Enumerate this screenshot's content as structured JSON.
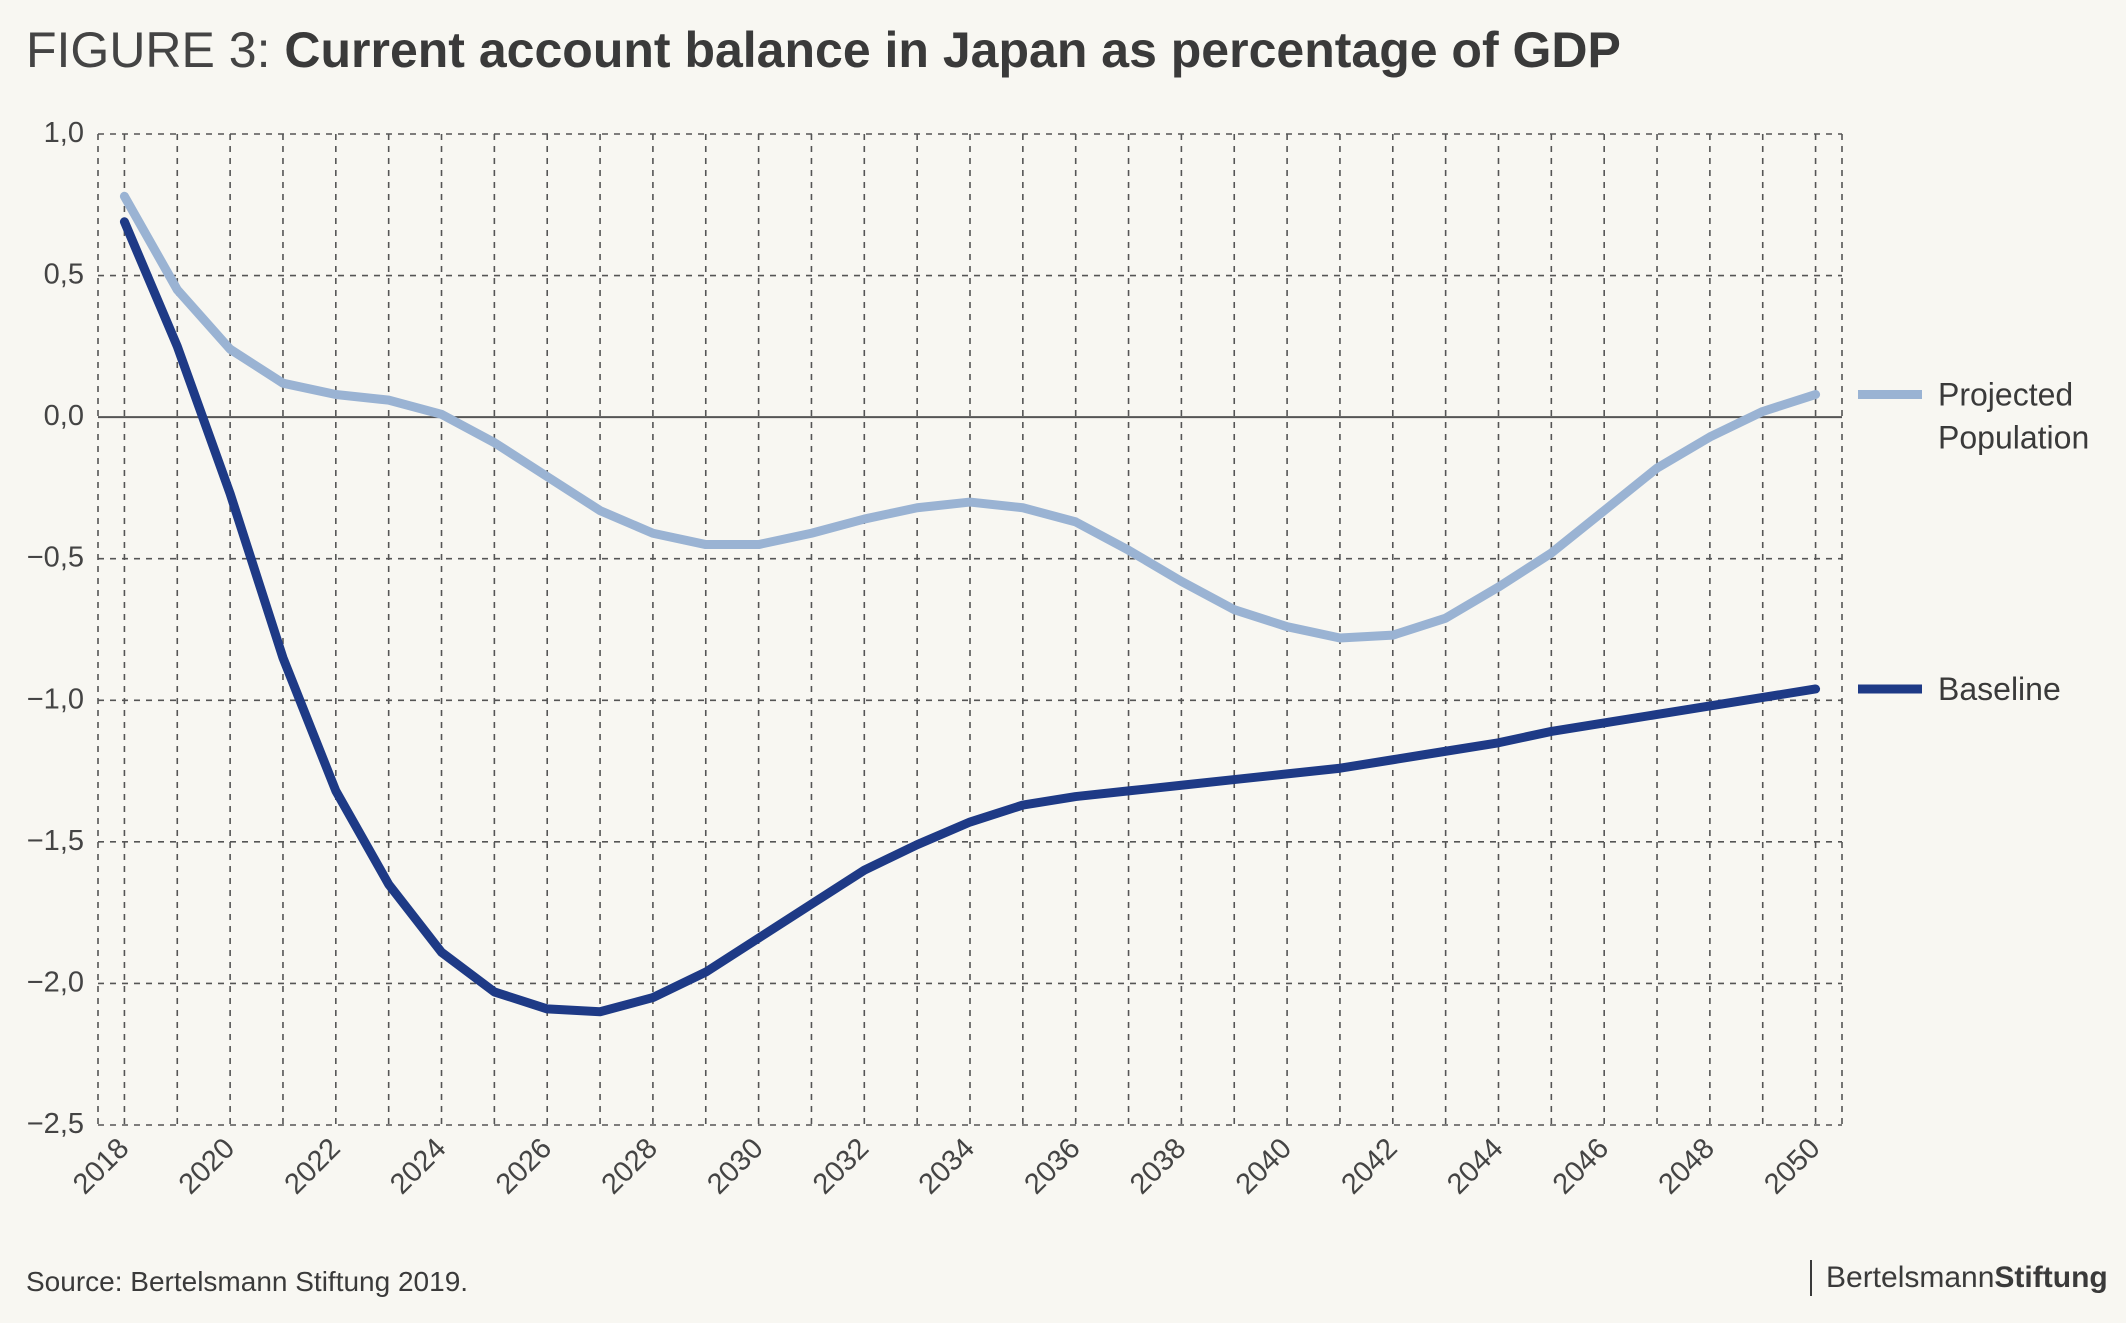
{
  "title_prefix": "FIGURE 3:",
  "title_main": "Current account balance in Japan as percentage of GDP",
  "source": "Source: Bertelsmann Stiftung 2019.",
  "logo": {
    "regular": "Bertelsmann",
    "bold": "Stiftung"
  },
  "chart_data": {
    "type": "line",
    "title": "Current account balance in Japan as percentage of GDP",
    "xlabel": "",
    "ylabel": "",
    "xlim": [
      2017,
      2050
    ],
    "ylim": [
      -2.5,
      1.0
    ],
    "grid": true,
    "legend_placement": "right",
    "y_ticks": [
      1.0,
      0.5,
      0.0,
      -0.5,
      -1.0,
      -1.5,
      -2.0,
      -2.5
    ],
    "y_tick_labels": [
      "1,0",
      "0,5",
      "0,0",
      "−0,5",
      "−1,0",
      "−1,5",
      "−2,0",
      "−2,5"
    ],
    "x_ticks": [
      2018,
      2020,
      2022,
      2024,
      2026,
      2028,
      2030,
      2032,
      2034,
      2036,
      2038,
      2040,
      2042,
      2044,
      2046,
      2048,
      2050
    ],
    "x_tick_labels": [
      "2018",
      "2020",
      "2022",
      "2024",
      "2026",
      "2028",
      "2030",
      "2032",
      "2034",
      "2036",
      "2038",
      "2040",
      "2042",
      "2044",
      "2046",
      "2048",
      "2050"
    ],
    "x": [
      2017.5,
      2018.5,
      2019.5,
      2020.5,
      2021.5,
      2022.5,
      2023.5,
      2024.5,
      2025.5,
      2026.5,
      2027.5,
      2028.5,
      2029.5,
      2030.5,
      2031.5,
      2032.5,
      2033.5,
      2034.5,
      2035.5,
      2036.5,
      2037.5,
      2038.5,
      2039.5,
      2040.5,
      2041.5,
      2042.5,
      2043.5,
      2044.5,
      2045.5,
      2046.5,
      2047.5,
      2048.5,
      2049.5
    ],
    "series": [
      {
        "name": "Projected Population",
        "color": "#9ab3d3",
        "values": [
          0.78,
          0.45,
          0.24,
          0.12,
          0.08,
          0.06,
          0.01,
          -0.09,
          -0.21,
          -0.33,
          -0.41,
          -0.45,
          -0.45,
          -0.41,
          -0.36,
          -0.32,
          -0.3,
          -0.32,
          -0.37,
          -0.47,
          -0.58,
          -0.68,
          -0.74,
          -0.78,
          -0.77,
          -0.71,
          -0.6,
          -0.48,
          -0.33,
          -0.18,
          -0.07,
          0.02,
          0.08
        ]
      },
      {
        "name": "Baseline",
        "color": "#1e3a86",
        "values": [
          0.69,
          0.25,
          -0.27,
          -0.85,
          -1.32,
          -1.65,
          -1.89,
          -2.03,
          -2.09,
          -2.1,
          -2.05,
          -1.96,
          -1.84,
          -1.72,
          -1.6,
          -1.51,
          -1.43,
          -1.37,
          -1.34,
          -1.32,
          -1.3,
          -1.28,
          -1.26,
          -1.24,
          -1.21,
          -1.18,
          -1.15,
          -1.11,
          -1.08,
          -1.05,
          -1.02,
          -0.99,
          -0.96
        ]
      }
    ]
  }
}
